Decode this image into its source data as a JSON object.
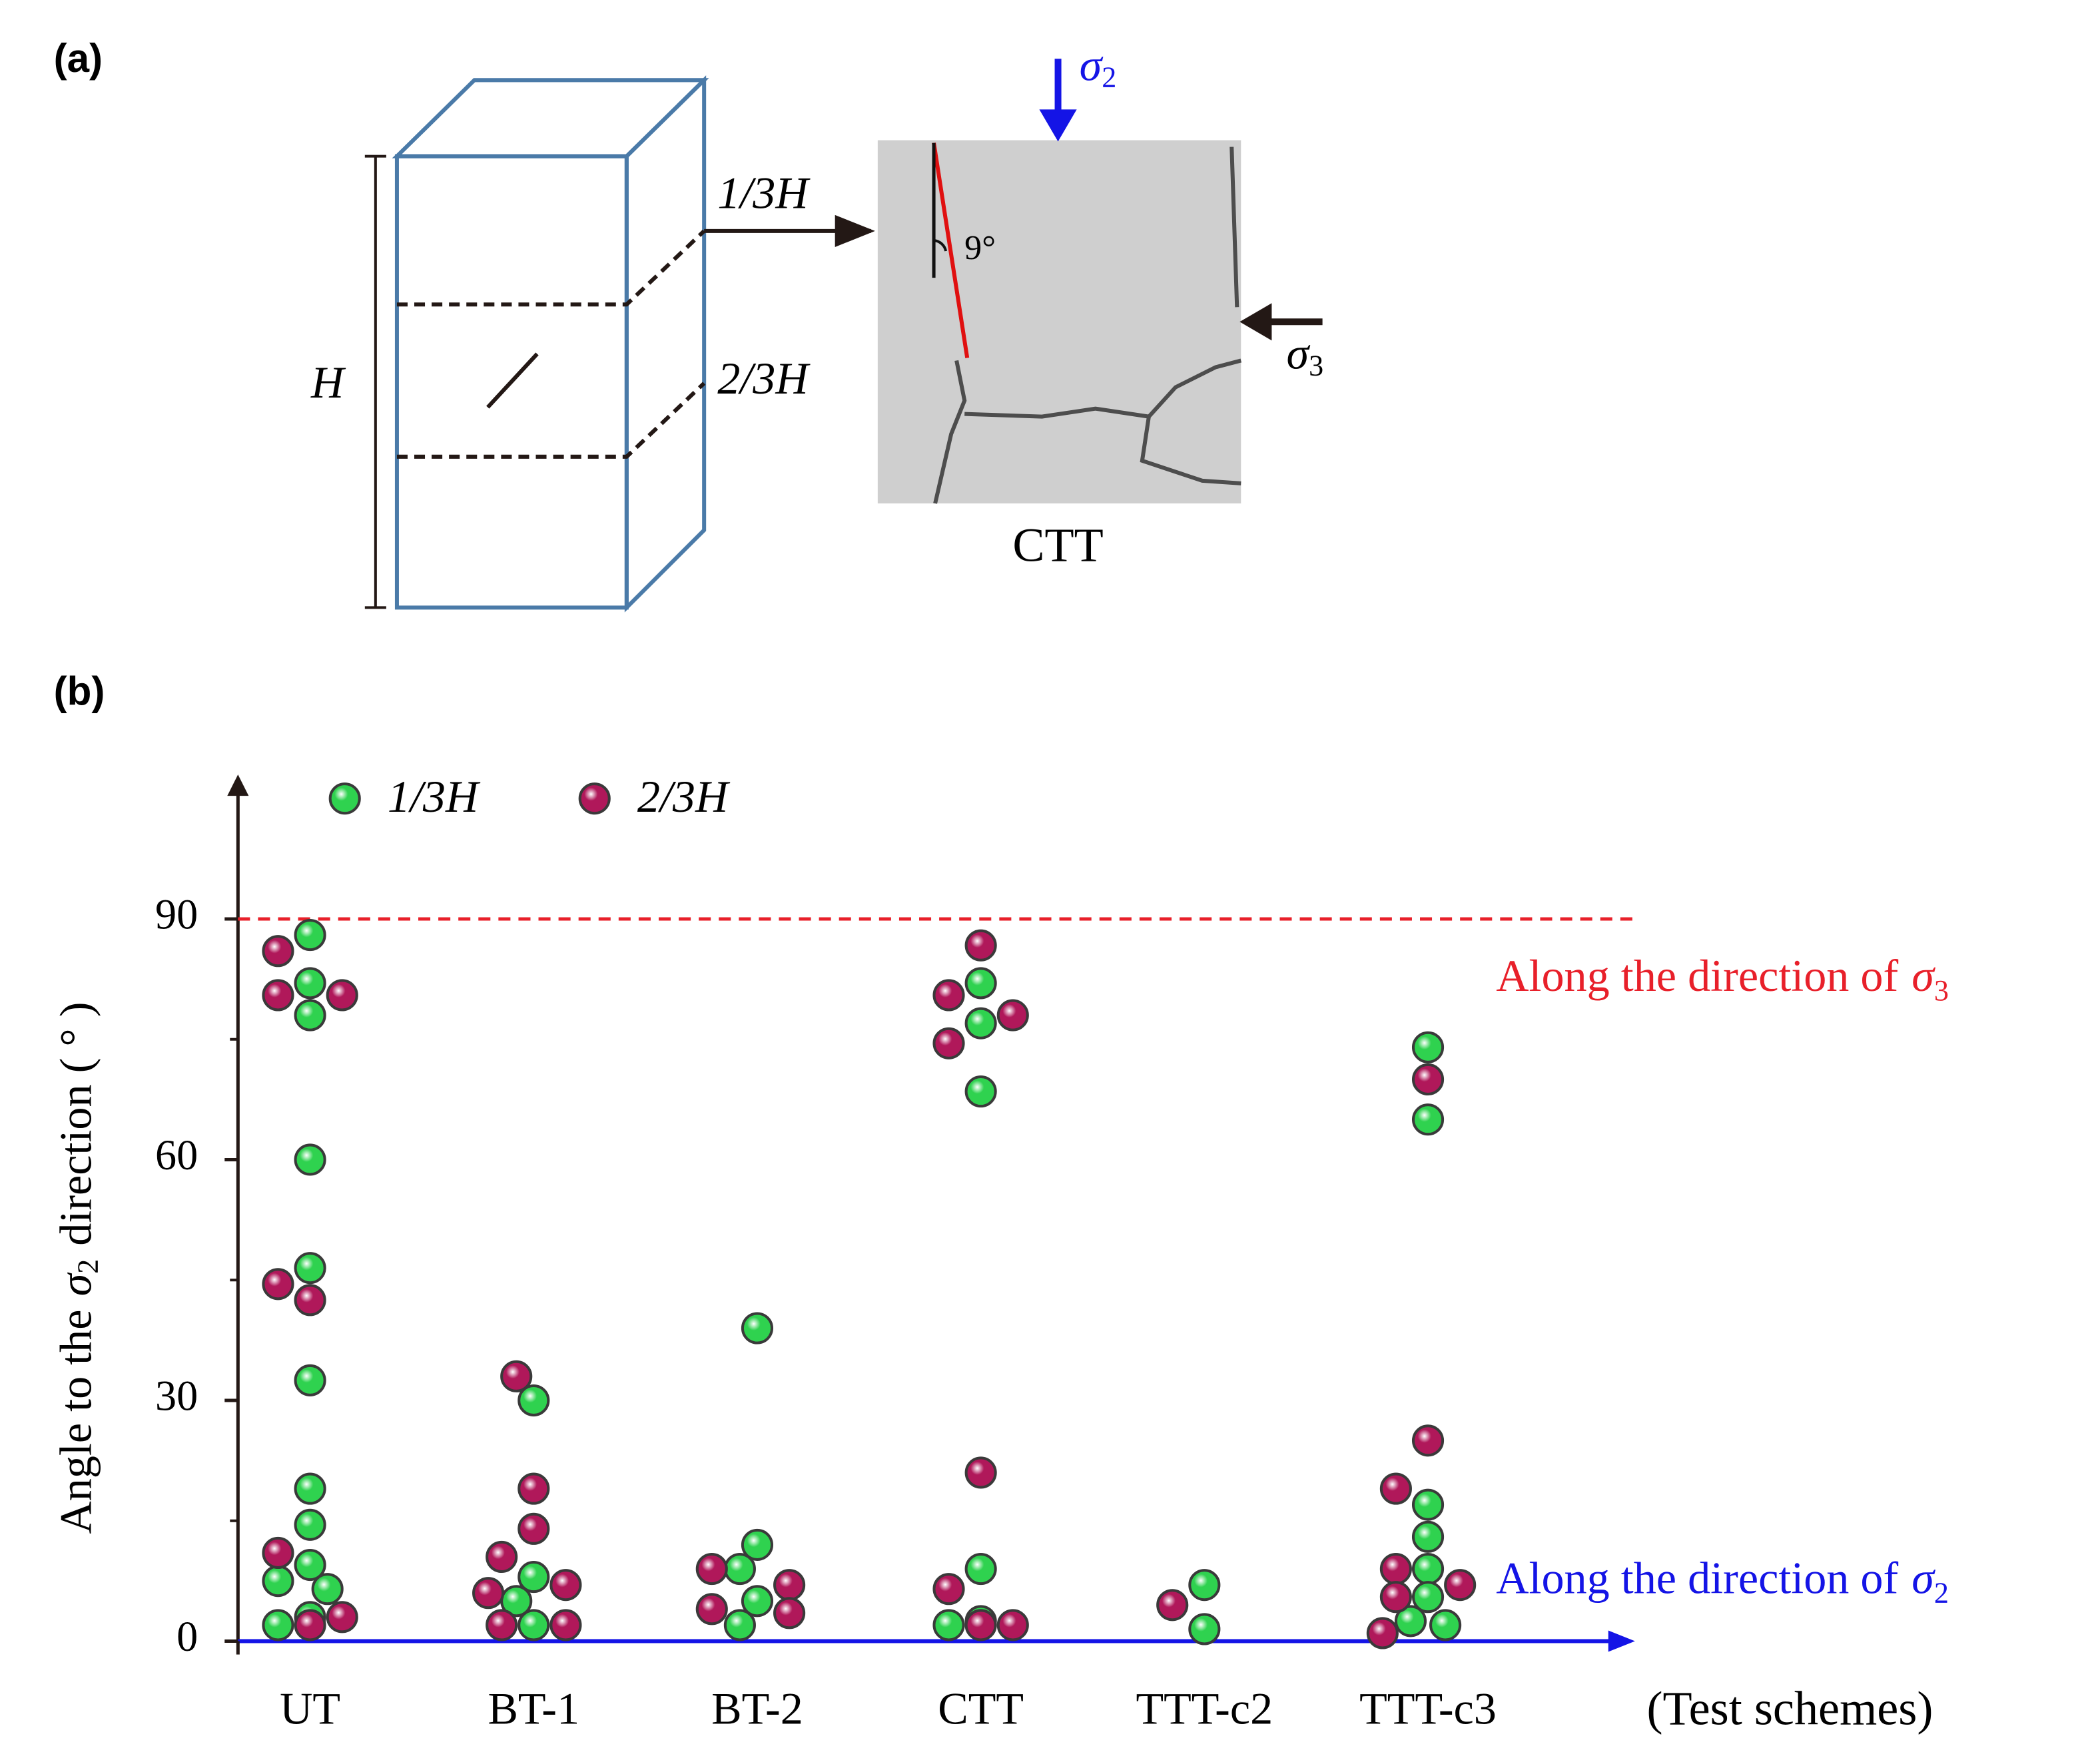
{
  "diagram": {
    "panel_label": "(a)",
    "height_label": "H",
    "upper_section": "1/3H",
    "lower_section": "2/3H",
    "image_caption": "CTT",
    "angle_label": "9°",
    "sigma2": {
      "symbol": "σ",
      "subscript": "2"
    },
    "sigma3": {
      "symbol": "σ",
      "subscript": "3"
    }
  },
  "chart_data": {
    "type": "scatter",
    "panel_label": "(b)",
    "categories": [
      "UT",
      "BT-1",
      "BT-2",
      "CTT",
      "TTT-c2",
      "TTT-c3"
    ],
    "xlabel": "(Test schemes)",
    "ylabel": {
      "before": "Angle to the",
      "symbol": "σ",
      "subscript": "2",
      "after": "direction ( ° )"
    },
    "ylim": [
      0,
      108
    ],
    "yticks": [
      0,
      30,
      60,
      90
    ],
    "minor_yticks": [
      15,
      45,
      75
    ],
    "series": [
      {
        "name": "1/3H",
        "color": "#2fd24f",
        "categories": [
          0,
          0,
          0,
          0,
          0,
          0,
          0,
          0,
          0,
          0,
          0,
          0,
          0,
          1,
          1,
          1,
          1,
          2,
          2,
          2,
          2,
          2,
          3,
          3,
          3,
          3,
          3,
          3,
          4,
          4,
          5,
          5,
          5,
          5,
          5,
          5,
          5,
          5
        ],
        "values": [
          88,
          82,
          78,
          60,
          46.5,
          32.5,
          19,
          14.5,
          9.5,
          7.5,
          6.5,
          3,
          2,
          30,
          8,
          5,
          2,
          39,
          12,
          9,
          5,
          2,
          82,
          77,
          68.5,
          9,
          2.5,
          2,
          7,
          1.5,
          74,
          65,
          17,
          13,
          9,
          5.5,
          2.5,
          2
        ]
      },
      {
        "name": "2/3H",
        "color": "#b0185a",
        "categories": [
          0,
          0,
          0,
          0,
          0,
          0,
          0,
          0,
          1,
          1,
          1,
          1,
          1,
          1,
          1,
          1,
          2,
          2,
          2,
          2,
          3,
          3,
          3,
          3,
          3,
          3,
          3,
          3,
          4,
          5,
          5,
          5,
          5,
          5,
          5,
          5
        ],
        "values": [
          86,
          80.5,
          80.5,
          44.5,
          42.5,
          11,
          3,
          2,
          33,
          19,
          14,
          10.5,
          7,
          6,
          2,
          2,
          7,
          9,
          3.5,
          4,
          86.7,
          80.5,
          78,
          74.5,
          21,
          6.5,
          2,
          2,
          4.5,
          70,
          25,
          19,
          9,
          7,
          5.5,
          1
        ]
      }
    ],
    "reference_line": {
      "value": 90,
      "color": "#e8202a",
      "text": "Along the direction of",
      "symbol": "σ",
      "subscript": "3"
    },
    "x_axis": {
      "color": "#1414e6",
      "text": "Along the direction of",
      "symbol": "σ",
      "subscript": "2"
    }
  }
}
